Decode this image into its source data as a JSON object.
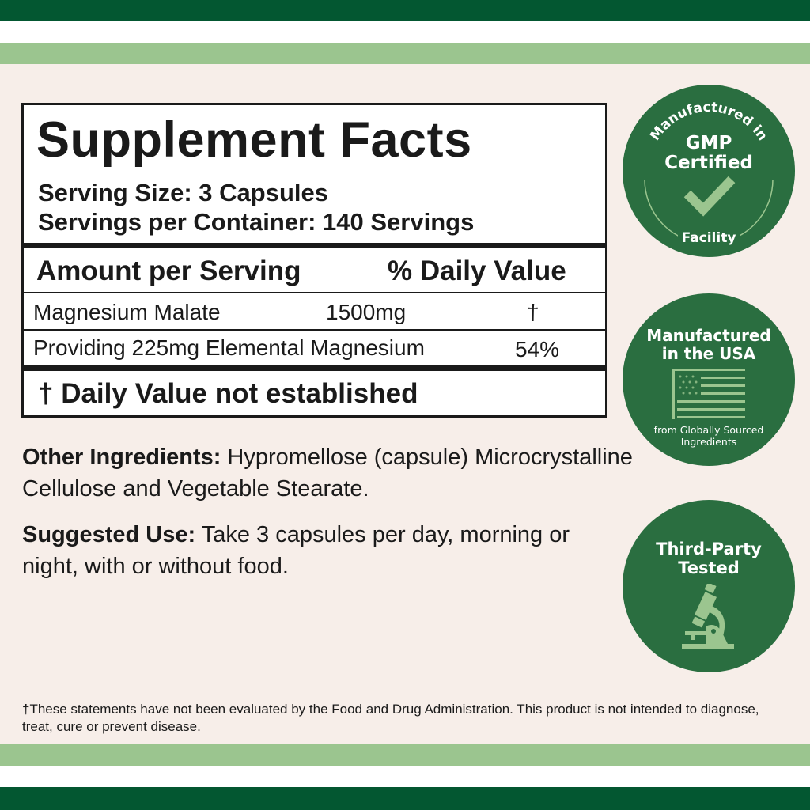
{
  "colors": {
    "dark_green": "#035731",
    "light_green": "#9bc58f",
    "badge_green": "#2a6e40",
    "background": "#f7eee9"
  },
  "facts": {
    "title": "Supplement Facts",
    "serving_size": "Serving Size: 3 Capsules",
    "servings_per_container": "Servings per Container: 140 Servings",
    "header_amount": "Amount per Serving",
    "header_dv": "% Daily Value",
    "rows": [
      {
        "name": "Magnesium Malate",
        "amount": "1500mg",
        "dv": "†"
      },
      {
        "name": "Providing 225mg Elemental Magnesium",
        "dv": "54%"
      }
    ],
    "footnote": "† Daily Value not established"
  },
  "other_ingredients": {
    "label": "Other Ingredients:",
    "text": " Hypromellose (capsule) Microcrystalline Cellulose and Vegetable Stearate."
  },
  "suggested_use": {
    "label": "Suggested Use:",
    "text": " Take 3 capsules per day, morning or night, with or without food."
  },
  "disclaimer": "†These statements have not been evaluated by the Food and Drug Administration. This product is not intended to diagnose, treat, cure or prevent disease.",
  "badges": {
    "gmp": {
      "arc_top": "Manufactured in",
      "line1": "GMP",
      "line2": "Certified",
      "arc_bottom": "Facility",
      "icon": "check-icon"
    },
    "usa": {
      "line1": "Manufactured",
      "line2": "in the USA",
      "sub1": "from Globally Sourced",
      "sub2": "Ingredients",
      "icon": "us-flag-icon"
    },
    "tested": {
      "line1": "Third-Party",
      "line2": "Tested",
      "icon": "microscope-icon"
    }
  }
}
